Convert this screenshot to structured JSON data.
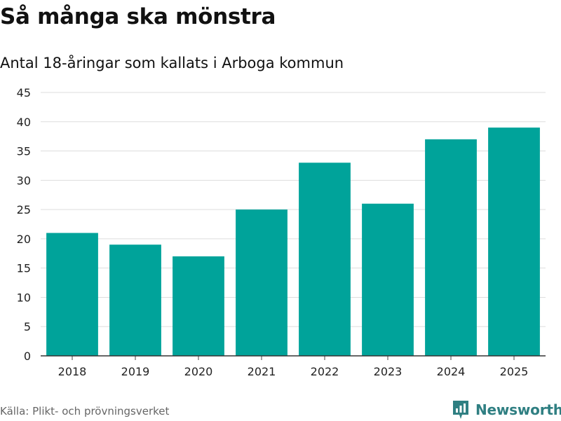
{
  "brand": {
    "name": "Newsworthy",
    "accent_color": "#2f7f82",
    "icon": "newsworthy-logo-icon"
  },
  "source": "Källa: Plikt- och prövningsverket",
  "chart_data": {
    "type": "bar",
    "title": "Så många ska mönstra",
    "subtitle": "Antal 18-åringar som kallats i Arboga kommun",
    "xlabel": "",
    "ylabel": "",
    "categories": [
      "2018",
      "2019",
      "2020",
      "2021",
      "2022",
      "2023",
      "2024",
      "2025"
    ],
    "values": [
      21,
      19,
      17,
      25,
      33,
      26,
      37,
      39
    ],
    "ylim": [
      0,
      45
    ],
    "yticks": [
      "0",
      "5",
      "10",
      "15",
      "20",
      "25",
      "30",
      "35",
      "40",
      "45"
    ],
    "bar_color": "#00a39a",
    "grid": true,
    "legend": "none"
  }
}
